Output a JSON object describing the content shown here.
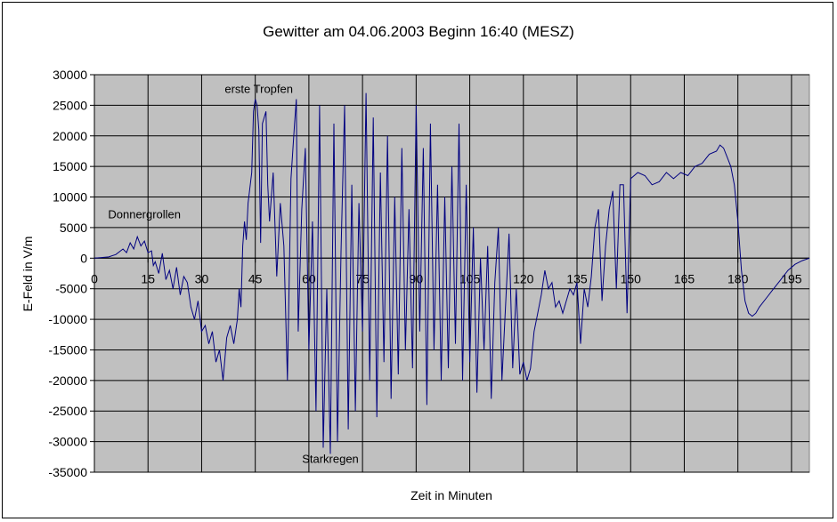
{
  "chart_data": {
    "type": "line",
    "title": "Gewitter am 04.06.2003 Beginn 16:40 (MESZ)",
    "xlabel": "Zeit in Minuten",
    "ylabel": "E-Feld in V/m",
    "xlim": [
      0,
      200
    ],
    "ylim": [
      -35000,
      30000
    ],
    "x_ticks": [
      0,
      15,
      30,
      45,
      60,
      75,
      90,
      105,
      120,
      135,
      150,
      165,
      180,
      195
    ],
    "x_tick_labels": [
      "0",
      "15",
      "30",
      "45",
      "60",
      "75",
      "90",
      "105",
      "120",
      "135",
      "150",
      "165",
      "180",
      "195"
    ],
    "y_ticks": [
      -35000,
      -30000,
      -25000,
      -20000,
      -15000,
      -10000,
      -5000,
      0,
      5000,
      10000,
      15000,
      20000,
      25000,
      30000
    ],
    "y_tick_labels": [
      "-35000",
      "-30000",
      "-25000",
      "-20000",
      "-15000",
      "-10000",
      "-5000",
      "0",
      "5000",
      "10000",
      "15000",
      "20000",
      "25000",
      "30000"
    ],
    "grid": true,
    "plot_background": "#c0c0c0",
    "line_color": "#000080",
    "annotations": [
      {
        "text": "Donnergrollen",
        "x": 14,
        "y": 6500
      },
      {
        "text": "erste Tropfen",
        "x": 46,
        "y": 27000
      },
      {
        "text": "Starkregen",
        "x": 66,
        "y": -33500
      }
    ],
    "series": [
      {
        "values": [
          [
            0,
            0
          ],
          [
            2,
            100
          ],
          [
            4,
            200
          ],
          [
            6,
            600
          ],
          [
            8,
            1500
          ],
          [
            9,
            900
          ],
          [
            10,
            2500
          ],
          [
            11,
            1500
          ],
          [
            12,
            3500
          ],
          [
            13,
            2000
          ],
          [
            14,
            2800
          ],
          [
            15,
            900
          ],
          [
            16,
            1200
          ],
          [
            16.5,
            -1200
          ],
          [
            17,
            -600
          ],
          [
            18,
            -2500
          ],
          [
            19,
            800
          ],
          [
            20,
            -3500
          ],
          [
            21,
            -2000
          ],
          [
            22,
            -5000
          ],
          [
            23,
            -1500
          ],
          [
            24,
            -6000
          ],
          [
            25,
            -3000
          ],
          [
            26,
            -4000
          ],
          [
            27,
            -8000
          ],
          [
            28,
            -10000
          ],
          [
            29,
            -7000
          ],
          [
            30,
            -12000
          ],
          [
            31,
            -11000
          ],
          [
            32,
            -14000
          ],
          [
            33,
            -12000
          ],
          [
            34,
            -17000
          ],
          [
            35,
            -15000
          ],
          [
            36,
            -20000
          ],
          [
            37,
            -13000
          ],
          [
            38,
            -11000
          ],
          [
            39,
            -14000
          ],
          [
            40,
            -10000
          ],
          [
            40.5,
            -5000
          ],
          [
            41,
            -8000
          ],
          [
            41.5,
            2000
          ],
          [
            42,
            6000
          ],
          [
            42.5,
            3000
          ],
          [
            43,
            9000
          ],
          [
            44,
            14000
          ],
          [
            44.5,
            24000
          ],
          [
            45,
            26000
          ],
          [
            45.5,
            25000
          ],
          [
            46,
            21000
          ],
          [
            46.5,
            2500
          ],
          [
            47,
            22000
          ],
          [
            48,
            24000
          ],
          [
            48.5,
            12000
          ],
          [
            49,
            6000
          ],
          [
            50,
            14000
          ],
          [
            51,
            -3000
          ],
          [
            52,
            9000
          ],
          [
            53,
            2000
          ],
          [
            54,
            -20000
          ],
          [
            55,
            13000
          ],
          [
            56,
            22000
          ],
          [
            56.5,
            26000
          ],
          [
            57,
            -12000
          ],
          [
            58,
            8000
          ],
          [
            59,
            18000
          ],
          [
            60,
            -15000
          ],
          [
            61,
            6000
          ],
          [
            62,
            -25000
          ],
          [
            63,
            25000
          ],
          [
            64,
            -31000
          ],
          [
            65,
            -5000
          ],
          [
            66,
            -32000
          ],
          [
            67,
            22000
          ],
          [
            68,
            -30000
          ],
          [
            69,
            1000
          ],
          [
            70,
            25000
          ],
          [
            71,
            -28000
          ],
          [
            72,
            12000
          ],
          [
            73,
            -25000
          ],
          [
            74,
            9000
          ],
          [
            75,
            -12000
          ],
          [
            76,
            27000
          ],
          [
            77,
            -20000
          ],
          [
            78,
            23000
          ],
          [
            79,
            -26000
          ],
          [
            80,
            14000
          ],
          [
            81,
            -17000
          ],
          [
            82,
            20000
          ],
          [
            83,
            -23000
          ],
          [
            84,
            10000
          ],
          [
            85,
            -19000
          ],
          [
            86,
            18000
          ],
          [
            87,
            -15000
          ],
          [
            88,
            8000
          ],
          [
            89,
            -18000
          ],
          [
            90,
            25000
          ],
          [
            91,
            -12000
          ],
          [
            92,
            18000
          ],
          [
            93,
            -24000
          ],
          [
            94,
            22000
          ],
          [
            95,
            -15000
          ],
          [
            96,
            12000
          ],
          [
            97,
            -20000
          ],
          [
            98,
            10000
          ],
          [
            99,
            -18000
          ],
          [
            100,
            15000
          ],
          [
            101,
            -14000
          ],
          [
            102,
            22000
          ],
          [
            103,
            -20000
          ],
          [
            104,
            12000
          ],
          [
            105,
            -17000
          ],
          [
            106,
            5000
          ],
          [
            107,
            -22000
          ],
          [
            108,
            0
          ],
          [
            109,
            -15000
          ],
          [
            110,
            2000
          ],
          [
            111,
            -23000
          ],
          [
            112,
            -4000
          ],
          [
            113,
            5000
          ],
          [
            114,
            -20000
          ],
          [
            115,
            -8000
          ],
          [
            116,
            4000
          ],
          [
            117,
            -18000
          ],
          [
            118,
            -5000
          ],
          [
            119,
            -19000
          ],
          [
            120,
            -17000
          ],
          [
            121,
            -20000
          ],
          [
            122,
            -18000
          ],
          [
            123,
            -12000
          ],
          [
            124,
            -9000
          ],
          [
            125,
            -6000
          ],
          [
            126,
            -2000
          ],
          [
            127,
            -5000
          ],
          [
            128,
            -4000
          ],
          [
            129,
            -8000
          ],
          [
            130,
            -7000
          ],
          [
            131,
            -9000
          ],
          [
            132,
            -7000
          ],
          [
            133,
            -5000
          ],
          [
            134,
            -6000
          ],
          [
            135,
            -4000
          ],
          [
            136,
            -14000
          ],
          [
            137,
            -5000
          ],
          [
            138,
            -8000
          ],
          [
            139,
            -3000
          ],
          [
            140,
            5000
          ],
          [
            141,
            8000
          ],
          [
            142,
            -7000
          ],
          [
            143,
            2000
          ],
          [
            144,
            8000
          ],
          [
            145,
            11000
          ],
          [
            146,
            -5000
          ],
          [
            147,
            12000
          ],
          [
            148,
            12000
          ],
          [
            149,
            -9000
          ],
          [
            150,
            13000
          ],
          [
            152,
            14000
          ],
          [
            154,
            13500
          ],
          [
            156,
            12000
          ],
          [
            158,
            12500
          ],
          [
            160,
            14000
          ],
          [
            162,
            13000
          ],
          [
            164,
            14000
          ],
          [
            166,
            13500
          ],
          [
            168,
            15000
          ],
          [
            170,
            15500
          ],
          [
            172,
            17000
          ],
          [
            174,
            17500
          ],
          [
            175,
            18500
          ],
          [
            176,
            18000
          ],
          [
            177,
            16500
          ],
          [
            178,
            15000
          ],
          [
            179,
            12000
          ],
          [
            180,
            6000
          ],
          [
            181,
            -2000
          ],
          [
            182,
            -7000
          ],
          [
            183,
            -9000
          ],
          [
            184,
            -9500
          ],
          [
            185,
            -9000
          ],
          [
            186,
            -8000
          ],
          [
            188,
            -6500
          ],
          [
            190,
            -5000
          ],
          [
            192,
            -3500
          ],
          [
            194,
            -2000
          ],
          [
            196,
            -1000
          ],
          [
            198,
            -400
          ],
          [
            200,
            0
          ]
        ]
      }
    ]
  }
}
